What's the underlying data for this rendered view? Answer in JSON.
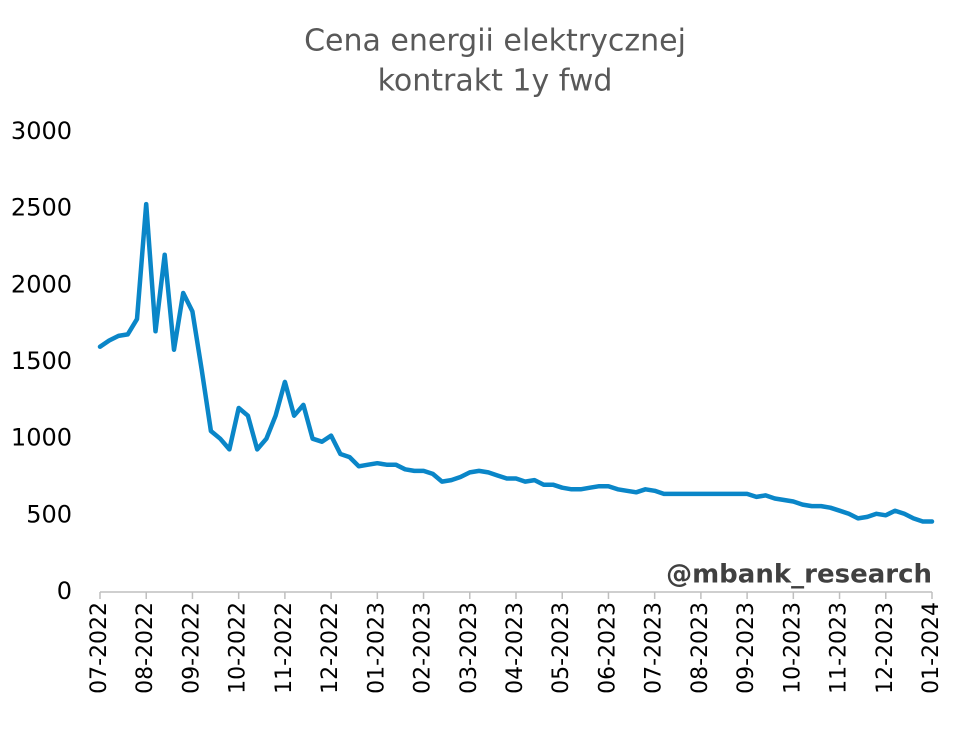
{
  "chart_data": {
    "type": "line",
    "title": [
      "Cena energii elektrycznej",
      "kontrakt 1y fwd"
    ],
    "annotation": "@mbank_research",
    "color": "#0a86c8",
    "categories": [
      "07-2022",
      null,
      null,
      null,
      null,
      "08-2022",
      null,
      null,
      null,
      null,
      "09-2022",
      null,
      null,
      null,
      null,
      "10-2022",
      null,
      null,
      null,
      null,
      "11-2022",
      null,
      null,
      null,
      null,
      "12-2022",
      null,
      null,
      null,
      null,
      "01-2023",
      null,
      null,
      null,
      null,
      "02-2023",
      null,
      null,
      null,
      null,
      "03-2023",
      null,
      null,
      null,
      null,
      "04-2023",
      null,
      null,
      null,
      null,
      "05-2023",
      null,
      null,
      null,
      null,
      "06-2023",
      null,
      null,
      null,
      null,
      "07-2023",
      null,
      null,
      null,
      null,
      "08-2023",
      null,
      null,
      null,
      null,
      "09-2023",
      null,
      null,
      null,
      null,
      "10-2023",
      null,
      null,
      null,
      null,
      "11-2023",
      null,
      null,
      null,
      null,
      "12-2023",
      null,
      null,
      null,
      null,
      "01-2024"
    ],
    "values": [
      1600,
      1640,
      1670,
      1680,
      1780,
      2530,
      1700,
      2200,
      1580,
      1950,
      1830,
      1450,
      1050,
      1000,
      930,
      1200,
      1150,
      930,
      1000,
      1150,
      1370,
      1150,
      1220,
      1000,
      980,
      1020,
      900,
      880,
      820,
      830,
      840,
      830,
      830,
      800,
      790,
      790,
      770,
      720,
      730,
      750,
      780,
      790,
      780,
      760,
      740,
      740,
      720,
      730,
      700,
      700,
      680,
      670,
      670,
      680,
      690,
      690,
      670,
      660,
      650,
      670,
      660,
      640,
      640,
      640,
      640,
      640,
      640,
      640,
      640,
      640,
      640,
      620,
      630,
      610,
      600,
      590,
      570,
      560,
      560,
      550,
      530,
      510,
      480,
      490,
      510,
      500,
      530,
      510,
      480,
      460,
      460
    ],
    "ylim": [
      0,
      3000
    ],
    "yticks": [
      0,
      500,
      1000,
      1500,
      2000,
      2500,
      3000
    ],
    "grid": false
  }
}
